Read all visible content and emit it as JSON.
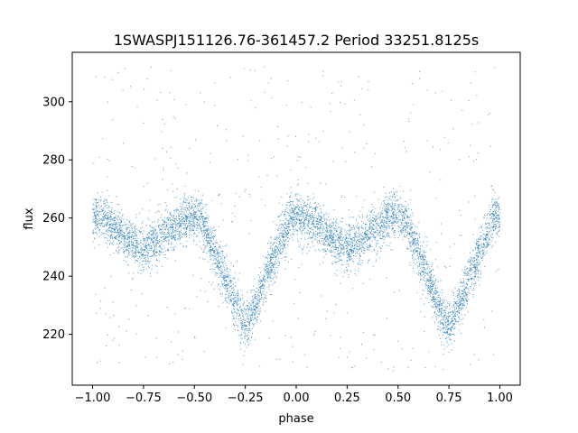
{
  "chart_data": {
    "type": "scatter",
    "title": "1SWASPJ151126.76-361457.2 Period 33251.8125s",
    "xlabel": "phase",
    "ylabel": "flux",
    "xlim": [
      -1.1,
      1.1
    ],
    "ylim": [
      202.5,
      317
    ],
    "xticks": [
      -1.0,
      -0.75,
      -0.5,
      -0.25,
      0.0,
      0.25,
      0.5,
      0.75,
      1.0
    ],
    "xtick_labels": [
      "−1.00",
      "−0.75",
      "−0.50",
      "−0.25",
      "0.00",
      "0.25",
      "0.50",
      "0.75",
      "1.00"
    ],
    "yticks": [
      220,
      240,
      260,
      280,
      300
    ],
    "ytick_labels": [
      "220",
      "240",
      "260",
      "280",
      "300"
    ],
    "marker_color": "#1f77b4",
    "grid": false,
    "legend": "none",
    "light_curve": {
      "baseline_flux": 260,
      "scatter_flux": 5,
      "primary_eclipse": {
        "phase": [
          -0.25,
          0.75
        ],
        "min_flux": 222,
        "half_width": 0.22
      },
      "secondary_eclipse": {
        "phase": [
          -0.75,
          0.25
        ],
        "min_flux": 249,
        "half_width": 0.2
      },
      "outlier_range": [
        207,
        312
      ]
    }
  }
}
